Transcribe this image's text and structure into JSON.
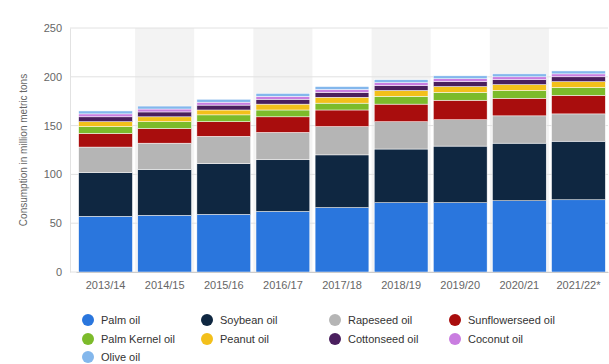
{
  "chart_data": {
    "type": "bar",
    "stacked": true,
    "grid": true,
    "legend": "bottom",
    "y_label": "Consumption in million metric tons",
    "categories": [
      "2013/14",
      "2014/15",
      "2015/16",
      "2016/17",
      "2017/18",
      "2018/19",
      "2019/20",
      "2020/21",
      "2021/22*"
    ],
    "ylim": [
      0,
      250
    ],
    "yticks": [
      0,
      50,
      100,
      150,
      200,
      250
    ],
    "series": [
      {
        "name": "Palm oil",
        "color": "#2a76dd",
        "values": [
          57,
          58,
          59,
          62,
          66,
          71,
          71,
          73,
          74
        ]
      },
      {
        "name": "Soybean oil",
        "color": "#0f2741",
        "values": [
          45,
          47,
          52,
          53,
          54,
          55,
          58,
          59,
          60
        ]
      },
      {
        "name": "Rapeseed oil",
        "color": "#b5b5b5",
        "values": [
          26,
          27,
          28,
          28,
          29,
          28,
          27,
          28,
          28
        ]
      },
      {
        "name": "Sunflowerseed oil",
        "color": "#a90d0d",
        "values": [
          14,
          15,
          15,
          16,
          17,
          18,
          20,
          18,
          19
        ]
      },
      {
        "name": "Palm Kernel oil",
        "color": "#7cbb2b",
        "values": [
          7,
          7,
          7,
          7,
          7,
          8,
          8,
          8,
          8
        ]
      },
      {
        "name": "Peanut oil",
        "color": "#f3c01b",
        "values": [
          5,
          5,
          5,
          6,
          6,
          6,
          6,
          6,
          6
        ]
      },
      {
        "name": "Cottonseed oil",
        "color": "#4a1f5e",
        "values": [
          5,
          5,
          5,
          5,
          5,
          5,
          5,
          5,
          5
        ]
      },
      {
        "name": "Coconut oil",
        "color": "#c97de0",
        "values": [
          3,
          3,
          3,
          3,
          3,
          3,
          3,
          3,
          3
        ]
      },
      {
        "name": "Olive oil",
        "color": "#83b7ec",
        "values": [
          3,
          3,
          3,
          3,
          3,
          3,
          3,
          3,
          3
        ]
      }
    ]
  }
}
